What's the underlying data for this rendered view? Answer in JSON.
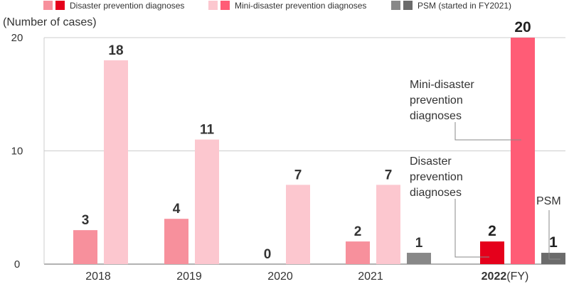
{
  "chart_data": {
    "type": "bar",
    "ylabel": "(Number of cases)",
    "ylim": [
      0,
      20
    ],
    "yticks": [
      0,
      10,
      20
    ],
    "categories": [
      "2018",
      "2019",
      "2020",
      "2021",
      "2022"
    ],
    "last_category_suffix": "(FY)",
    "legend": [
      {
        "label": "Disaster prevention diagnoses",
        "colors": [
          "#f7909c",
          "#e5001b"
        ]
      },
      {
        "label": "Mini-disaster prevention diagnoses",
        "colors": [
          "#fcc7cf",
          "#ff5c76"
        ]
      },
      {
        "label": "PSM (started in FY2021)",
        "colors": [
          "#888888",
          "#6b6b6b"
        ]
      }
    ],
    "series": [
      {
        "name": "Disaster prevention diagnoses",
        "values": [
          3,
          4,
          0,
          2,
          2
        ]
      },
      {
        "name": "Mini-disaster prevention diagnoses",
        "values": [
          18,
          11,
          7,
          7,
          20
        ]
      },
      {
        "name": "PSM",
        "values": [
          null,
          null,
          null,
          1,
          1
        ]
      }
    ],
    "colors": {
      "disaster": "#f7909c",
      "disaster_highlight": "#e5001b",
      "mini": "#fcc7cf",
      "mini_highlight": "#ff5c76",
      "psm": "#888888",
      "psm_highlight": "#6b6b6b"
    },
    "annotations": {
      "mini": [
        "Mini-disaster",
        "prevention",
        "diagnoses"
      ],
      "disaster": [
        "Disaster",
        "prevention",
        "diagnoses"
      ],
      "psm": [
        "PSM"
      ]
    }
  }
}
